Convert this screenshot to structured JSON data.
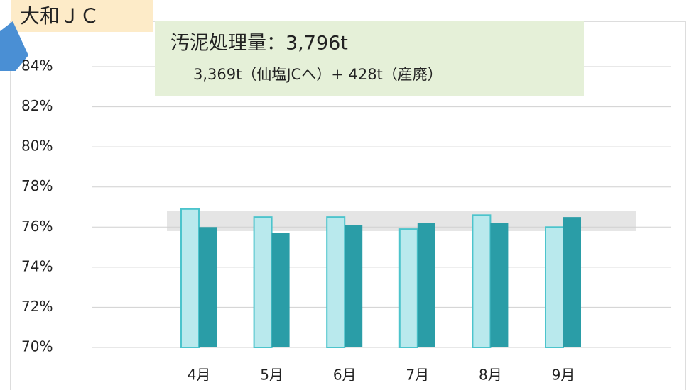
{
  "chart_data": {
    "type": "bar",
    "title": "大和ＪＣ",
    "annotations": [
      "汚泥処理量：3,796t",
      "3,369t（仙塩JCへ）+ 428t（産廃）"
    ],
    "categories": [
      "4月",
      "5月",
      "6月",
      "7月",
      "8月",
      "9月"
    ],
    "series": [
      {
        "color": "#b9e9ed",
        "values": [
          76.9,
          76.5,
          76.5,
          75.9,
          76.6,
          76.0
        ]
      },
      {
        "color": "#2a9da7",
        "values": [
          76.0,
          75.7,
          76.1,
          76.2,
          76.2,
          76.5
        ]
      }
    ],
    "reference_band": [
      75.8,
      76.8
    ],
    "ylim": [
      70,
      84
    ],
    "yticks": [
      {
        "value": 70,
        "label": "70%"
      },
      {
        "value": 72,
        "label": "72%"
      },
      {
        "value": 74,
        "label": "74%"
      },
      {
        "value": 76,
        "label": "76%"
      },
      {
        "value": 78,
        "label": "78%"
      },
      {
        "value": 80,
        "label": "80%"
      },
      {
        "value": 82,
        "label": "82%"
      },
      {
        "value": 84,
        "label": "84%"
      }
    ],
    "grid": true
  }
}
